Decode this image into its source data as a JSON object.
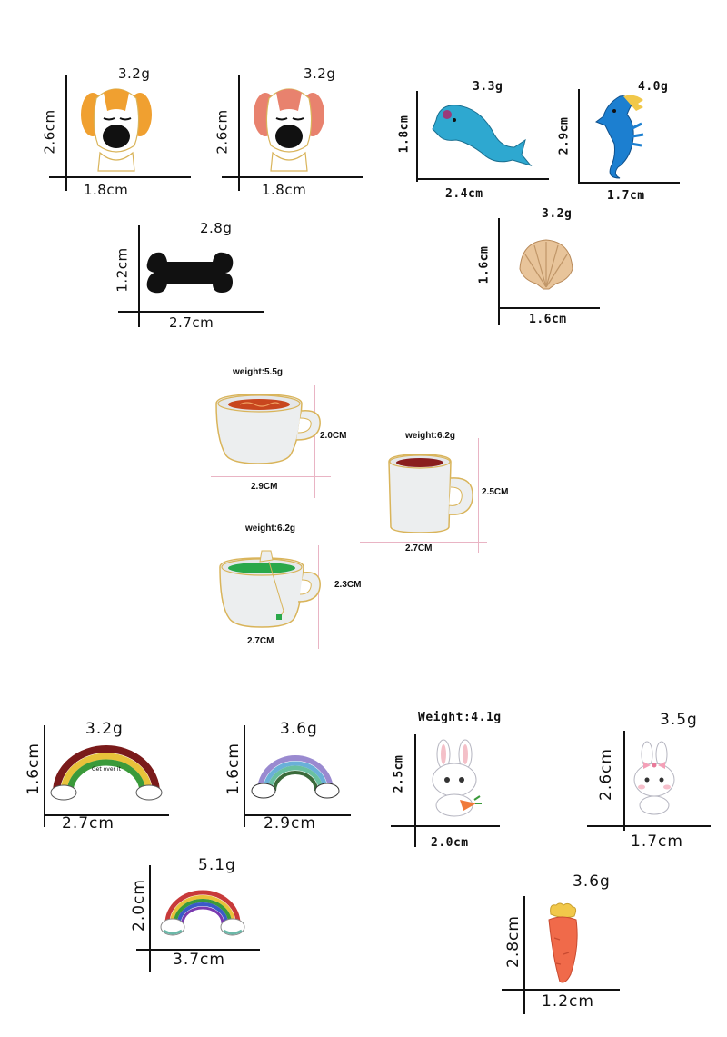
{
  "section1": {
    "dog_orange": {
      "weight": "3.2g",
      "height": "2.6cm",
      "width": "1.8cm"
    },
    "dog_pink": {
      "weight": "3.2g",
      "height": "2.6cm",
      "width": "1.8cm"
    },
    "dolphin": {
      "weight": "3.3g",
      "height": "1.8cm",
      "width": "2.4cm"
    },
    "seahorse": {
      "weight": "4.0g",
      "height": "2.9cm",
      "width": "1.7cm"
    },
    "bone": {
      "weight": "2.8g",
      "height": "1.2cm",
      "width": "2.7cm"
    },
    "shell": {
      "weight": "3.2g",
      "height": "1.6cm",
      "width": "1.6cm"
    }
  },
  "section2": {
    "cup_coffee": {
      "weight": "weight:5.5g",
      "height": "2.0CM",
      "width": "2.9CM"
    },
    "mug_red": {
      "weight": "weight:6.2g",
      "height": "2.5CM",
      "width": "2.7CM"
    },
    "cup_tea": {
      "weight": "weight:6.2g",
      "height": "2.3CM",
      "width": "2.7CM"
    }
  },
  "section3": {
    "rainbow_red": {
      "weight": "3.2g",
      "height": "1.6cm",
      "width": "2.7cm",
      "inscription": "Get over it"
    },
    "rainbow_pastel": {
      "weight": "3.6g",
      "height": "1.6cm",
      "width": "2.9cm"
    },
    "bunny_carrot": {
      "weight": "Weight:4.1g",
      "height": "2.5cm",
      "width": "2.0cm"
    },
    "bunny_bow": {
      "weight": "3.5g",
      "height": "2.6cm",
      "width": "1.7cm"
    },
    "rainbow_small": {
      "weight": "5.1g",
      "height": "2.0cm",
      "width": "3.7cm"
    },
    "carrot": {
      "weight": "3.6g",
      "height": "2.8cm",
      "width": "1.2cm"
    }
  },
  "colors": {
    "axis": "#111111",
    "pale_axis": "#e9b4c4",
    "dog_orange": "#f0a030",
    "dog_pink": "#e8826e",
    "dolphin": "#2ea8d0",
    "seahorse": "#1c7fd0",
    "bone": "#111111",
    "shell": "#e8c49a",
    "gold_rim": "#d9b45a",
    "tea": "#2aa84a",
    "coffee": "#c8461e"
  }
}
